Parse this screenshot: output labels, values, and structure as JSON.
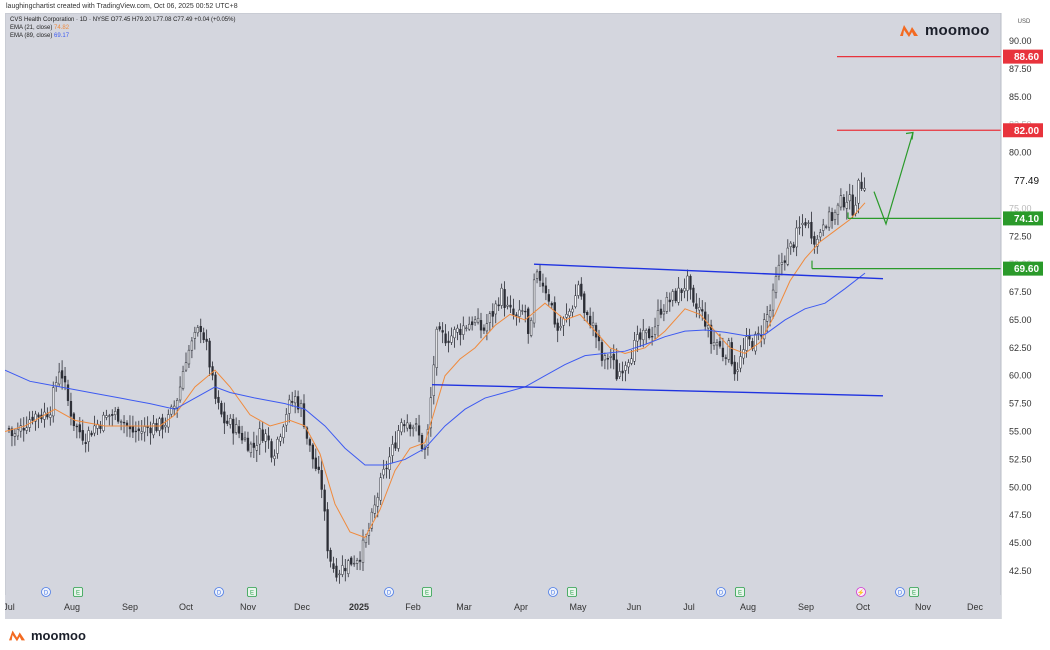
{
  "credit": "laughingchartist created with TradingView.com, Oct 06, 2025 00:52 UTC+8",
  "legend": {
    "symbol_line": "CVS Health Corporation · 1D · NYSE  O77.45  H79.20  L77.08  C77.49  +0.04 (+0.05%)",
    "ema21_label": "EMA (21, close)",
    "ema21_value": "74.82",
    "ema89_label": "EMA (89, close)",
    "ema89_value": "69.17"
  },
  "brand": "moomoo",
  "currency": "USD",
  "colors": {
    "plot_bg": "#d4d6de",
    "candle": "#2b2d35",
    "ema21": "#f08a3c",
    "ema89": "#3d5af1",
    "channel": "#1f33e0",
    "resistance": "#e8333c",
    "support": "#2a9a2a",
    "projection": "#2a9a2a",
    "price_tag": "#ffffff",
    "brand_orange": "#f36a21"
  },
  "chart_data": {
    "type": "candlestick",
    "title": "CVS Health Corporation · 1D · NYSE",
    "ylim": [
      41,
      91.5
    ],
    "y_ticks": [
      "42.50",
      "45.00",
      "47.50",
      "50.00",
      "52.50",
      "55.00",
      "57.50",
      "60.00",
      "62.50",
      "65.00",
      "67.50",
      "70.00",
      "72.50",
      "75.00",
      "77.50",
      "80.00",
      "82.50",
      "85.00",
      "87.50",
      "90.00"
    ],
    "x_ticks": [
      "Jul",
      "Aug",
      "Sep",
      "Oct",
      "Nov",
      "Dec",
      "2025",
      "Feb",
      "Mar",
      "Apr",
      "May",
      "Jun",
      "Jul",
      "Aug",
      "Sep",
      "Oct",
      "Nov",
      "Dec"
    ],
    "price_path": [
      [
        0,
        56
      ],
      [
        8,
        54.5
      ],
      [
        18,
        55.5
      ],
      [
        28,
        56.5
      ],
      [
        38,
        56.5
      ],
      [
        45,
        57
      ],
      [
        55,
        61
      ],
      [
        62,
        58
      ],
      [
        70,
        55.5
      ],
      [
        80,
        54.5
      ],
      [
        90,
        55.5
      ],
      [
        105,
        56.5
      ],
      [
        115,
        56.5
      ],
      [
        125,
        55
      ],
      [
        135,
        55
      ],
      [
        145,
        55.5
      ],
      [
        155,
        55.5
      ],
      [
        163,
        56
      ],
      [
        168,
        57
      ],
      [
        174,
        58.5
      ],
      [
        180,
        61.5
      ],
      [
        188,
        63
      ],
      [
        196,
        64.5
      ],
      [
        203,
        62
      ],
      [
        210,
        58
      ],
      [
        218,
        56
      ],
      [
        228,
        55.5
      ],
      [
        238,
        54.5
      ],
      [
        248,
        53.5
      ],
      [
        256,
        55
      ],
      [
        262,
        54.5
      ],
      [
        268,
        53
      ],
      [
        275,
        55
      ],
      [
        282,
        57
      ],
      [
        290,
        58
      ],
      [
        297,
        57
      ],
      [
        303,
        54
      ],
      [
        310,
        52
      ],
      [
        317,
        50
      ],
      [
        322,
        45
      ],
      [
        327,
        43
      ],
      [
        333,
        42.5
      ],
      [
        340,
        43
      ],
      [
        348,
        43.5
      ],
      [
        355,
        44
      ],
      [
        362,
        45.5
      ],
      [
        368,
        47.5
      ],
      [
        372,
        49
      ],
      [
        378,
        51
      ],
      [
        384,
        52.5
      ],
      [
        390,
        54
      ],
      [
        396,
        56
      ],
      [
        403,
        56
      ],
      [
        410,
        55.5
      ],
      [
        416,
        54
      ],
      [
        421,
        53
      ],
      [
        425,
        57
      ],
      [
        431,
        63.5
      ],
      [
        438,
        63.5
      ],
      [
        445,
        63.5
      ],
      [
        452,
        64
      ],
      [
        460,
        64.5
      ],
      [
        468,
        65
      ],
      [
        478,
        64
      ],
      [
        490,
        66
      ],
      [
        496,
        67.5
      ],
      [
        502,
        66
      ],
      [
        512,
        65
      ],
      [
        520,
        66
      ],
      [
        525,
        62
      ],
      [
        528,
        68
      ],
      [
        534,
        69
      ],
      [
        540,
        68
      ],
      [
        546,
        66.5
      ],
      [
        552,
        64
      ],
      [
        560,
        65
      ],
      [
        566,
        66
      ],
      [
        570,
        67
      ],
      [
        574,
        68.5
      ],
      [
        580,
        65
      ],
      [
        586,
        65
      ],
      [
        593,
        63
      ],
      [
        598,
        61
      ],
      [
        605,
        62
      ],
      [
        612,
        60
      ],
      [
        618,
        61
      ],
      [
        625,
        62
      ],
      [
        632,
        63
      ],
      [
        640,
        63.5
      ],
      [
        648,
        64
      ],
      [
        655,
        66
      ],
      [
        662,
        66.5
      ],
      [
        668,
        67
      ],
      [
        675,
        67.5
      ],
      [
        682,
        68.5
      ],
      [
        688,
        66
      ],
      [
        694,
        66
      ],
      [
        700,
        65
      ],
      [
        706,
        63
      ],
      [
        712,
        63
      ],
      [
        718,
        62
      ],
      [
        724,
        62.5
      ],
      [
        730,
        60.5
      ],
      [
        736,
        61.5
      ],
      [
        742,
        63
      ],
      [
        748,
        63
      ],
      [
        754,
        63.5
      ],
      [
        760,
        65
      ],
      [
        766,
        66
      ],
      [
        772,
        69
      ],
      [
        778,
        70.5
      ],
      [
        786,
        71.5
      ],
      [
        794,
        73
      ],
      [
        800,
        74
      ],
      [
        806,
        73
      ],
      [
        812,
        72
      ],
      [
        818,
        74
      ],
      [
        824,
        74
      ],
      [
        830,
        74.5
      ],
      [
        836,
        75.5
      ],
      [
        842,
        76
      ],
      [
        848,
        75
      ],
      [
        854,
        77
      ],
      [
        860,
        77.5
      ]
    ],
    "series": [
      {
        "name": "EMA (21, close)",
        "color": "#f08a3c",
        "points": [
          [
            0,
            55
          ],
          [
            20,
            55.5
          ],
          [
            50,
            57
          ],
          [
            70,
            56
          ],
          [
            100,
            55.5
          ],
          [
            130,
            55.5
          ],
          [
            155,
            55.5
          ],
          [
            170,
            56.5
          ],
          [
            190,
            59
          ],
          [
            210,
            60.5
          ],
          [
            225,
            59
          ],
          [
            245,
            56.5
          ],
          [
            265,
            55.5
          ],
          [
            285,
            56
          ],
          [
            300,
            55.5
          ],
          [
            315,
            53
          ],
          [
            330,
            48.5
          ],
          [
            345,
            46
          ],
          [
            360,
            45.5
          ],
          [
            375,
            48
          ],
          [
            390,
            51.5
          ],
          [
            405,
            53.5
          ],
          [
            420,
            54
          ],
          [
            430,
            57
          ],
          [
            440,
            60
          ],
          [
            455,
            61.5
          ],
          [
            470,
            62.5
          ],
          [
            490,
            64.5
          ],
          [
            505,
            65.5
          ],
          [
            520,
            65
          ],
          [
            540,
            66.5
          ],
          [
            560,
            65
          ],
          [
            575,
            65.5
          ],
          [
            590,
            64
          ],
          [
            605,
            62.5
          ],
          [
            620,
            62
          ],
          [
            640,
            62.5
          ],
          [
            660,
            64
          ],
          [
            680,
            66
          ],
          [
            695,
            65.5
          ],
          [
            710,
            64
          ],
          [
            725,
            62.5
          ],
          [
            740,
            62
          ],
          [
            755,
            63
          ],
          [
            770,
            65.5
          ],
          [
            785,
            68.5
          ],
          [
            800,
            70.5
          ],
          [
            815,
            72
          ],
          [
            830,
            73
          ],
          [
            845,
            74
          ],
          [
            860,
            75.5
          ]
        ]
      },
      {
        "name": "EMA (89, close)",
        "color": "#3d5af1",
        "points": [
          [
            0,
            60.5
          ],
          [
            25,
            59.5
          ],
          [
            55,
            59
          ],
          [
            85,
            58.5
          ],
          [
            115,
            58
          ],
          [
            145,
            57.5
          ],
          [
            170,
            57
          ],
          [
            190,
            58
          ],
          [
            210,
            59
          ],
          [
            225,
            58.5
          ],
          [
            250,
            58
          ],
          [
            280,
            57.5
          ],
          [
            300,
            57
          ],
          [
            320,
            55.5
          ],
          [
            340,
            53.5
          ],
          [
            360,
            52
          ],
          [
            380,
            52
          ],
          [
            400,
            52.5
          ],
          [
            420,
            53.5
          ],
          [
            440,
            55.5
          ],
          [
            460,
            57
          ],
          [
            480,
            58
          ],
          [
            500,
            58.5
          ],
          [
            520,
            59
          ],
          [
            540,
            60
          ],
          [
            560,
            61
          ],
          [
            580,
            61.8
          ],
          [
            600,
            62
          ],
          [
            620,
            62.2
          ],
          [
            640,
            62.8
          ],
          [
            660,
            63.5
          ],
          [
            680,
            64
          ],
          [
            700,
            64.1
          ],
          [
            720,
            63.9
          ],
          [
            740,
            63.6
          ],
          [
            760,
            63.7
          ],
          [
            780,
            65
          ],
          [
            800,
            66
          ],
          [
            820,
            66.5
          ],
          [
            840,
            67.8
          ],
          [
            860,
            69.2
          ]
        ]
      }
    ],
    "annotations": {
      "channel": {
        "upper": [
          [
            529,
            70
          ],
          [
            878,
            68.7
          ]
        ],
        "lower": [
          [
            427,
            59.2
          ],
          [
            878,
            58.2
          ]
        ]
      },
      "resistance_levels": [
        88.6,
        82.0
      ],
      "support_levels": [
        74.1,
        69.6
      ],
      "projection_path": [
        [
          869,
          76.5
        ],
        [
          881,
          73.6
        ],
        [
          908,
          81.8
        ]
      ],
      "last_price": 77.49
    },
    "price_tags": [
      {
        "value": "88.60",
        "kind": "resistance"
      },
      {
        "value": "82.00",
        "kind": "resistance"
      },
      {
        "value": "77.49",
        "kind": "last"
      },
      {
        "value": "74.10",
        "kind": "support"
      },
      {
        "value": "69.60",
        "kind": "support"
      }
    ],
    "events": [
      "D",
      "E",
      "D",
      "E",
      "D",
      "E",
      "D",
      "E",
      "D",
      "E",
      "⚡",
      "D",
      "E"
    ]
  }
}
